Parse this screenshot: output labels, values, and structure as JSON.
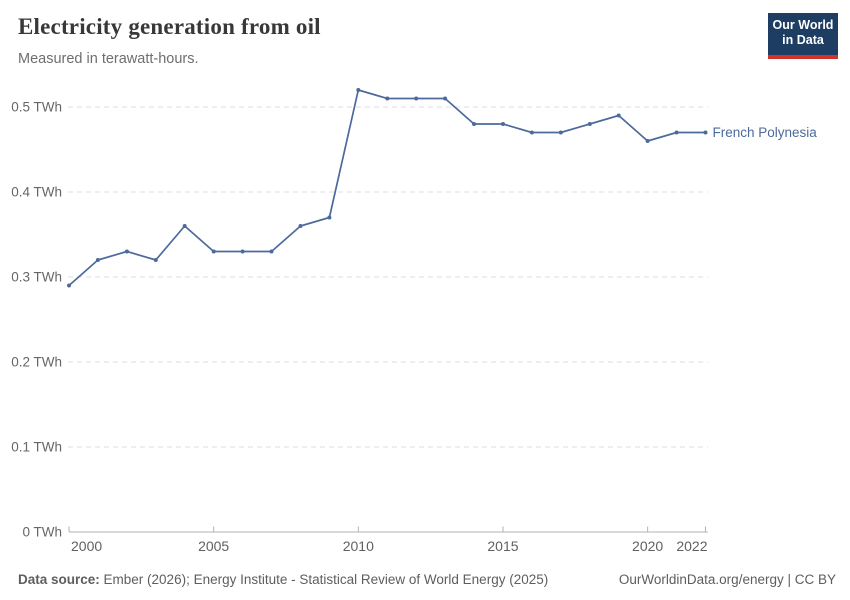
{
  "header": {
    "title": "Electricity generation from oil",
    "subtitle": "Measured in terawatt-hours.",
    "logo": {
      "line1": "Our World",
      "line2": "in Data"
    }
  },
  "chart_data": {
    "type": "line",
    "title": "Electricity generation from oil",
    "subtitle": "Measured in terawatt-hours.",
    "unit": "TWh",
    "grid": "horizontal-dashed",
    "legend_position": "end-of-line-label",
    "xlim": [
      2000,
      2022
    ],
    "ylim": [
      0,
      0.55
    ],
    "x_ticks": [
      {
        "value": 2000,
        "label": "2000"
      },
      {
        "value": 2005,
        "label": "2005"
      },
      {
        "value": 2010,
        "label": "2010"
      },
      {
        "value": 2015,
        "label": "2015"
      },
      {
        "value": 2020,
        "label": "2020"
      },
      {
        "value": 2022,
        "label": "2022"
      }
    ],
    "y_ticks": [
      {
        "value": 0,
        "label": "0 TWh"
      },
      {
        "value": 0.1,
        "label": "0.1 TWh"
      },
      {
        "value": 0.2,
        "label": "0.2 TWh"
      },
      {
        "value": 0.3,
        "label": "0.3 TWh"
      },
      {
        "value": 0.4,
        "label": "0.4 TWh"
      },
      {
        "value": 0.5,
        "label": "0.5 TWh"
      }
    ],
    "series": [
      {
        "name": "French Polynesia",
        "color": "#4c6a9c",
        "x": [
          2000,
          2001,
          2002,
          2003,
          2004,
          2005,
          2006,
          2007,
          2008,
          2009,
          2010,
          2011,
          2012,
          2013,
          2014,
          2015,
          2016,
          2017,
          2018,
          2019,
          2020,
          2021,
          2022
        ],
        "values": [
          0.29,
          0.32,
          0.33,
          0.32,
          0.36,
          0.33,
          0.33,
          0.33,
          0.36,
          0.37,
          0.52,
          0.51,
          0.51,
          0.51,
          0.48,
          0.48,
          0.47,
          0.47,
          0.48,
          0.49,
          0.46,
          0.47,
          0.47
        ]
      }
    ]
  },
  "footer": {
    "source_label": "Data source:",
    "source_text": " Ember (2026); Energy Institute - Statistical Review of World Energy (2025)",
    "right_text": "OurWorldinData.org/energy | CC BY"
  }
}
